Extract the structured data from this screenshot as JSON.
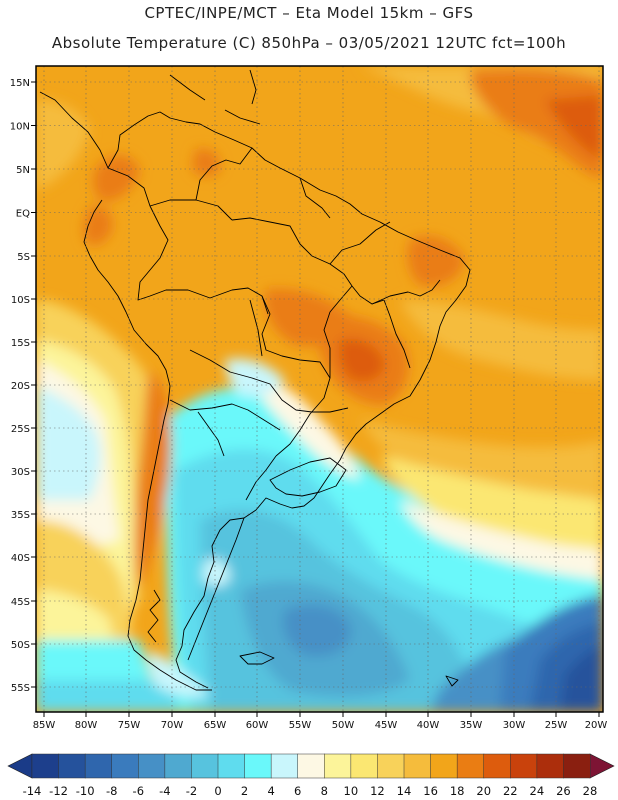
{
  "header": {
    "line1": "CPTEC/INPE/MCT –   Eta Model 15km – GFS",
    "line2": "Absolute Temperature (C) 850hPa – 03/05/2021 12UTC fct=100h"
  },
  "map": {
    "lat_labels": [
      "15N",
      "10N",
      "5N",
      "EQ",
      "5S",
      "10S",
      "15S",
      "20S",
      "25S",
      "30S",
      "35S",
      "40S",
      "45S",
      "50S",
      "55S"
    ],
    "lon_labels": [
      "85W",
      "80W",
      "75W",
      "70W",
      "65W",
      "60W",
      "55W",
      "50W",
      "45W",
      "40W",
      "35W",
      "30W",
      "25W",
      "20W"
    ]
  },
  "colorbar": {
    "labels": [
      "-14",
      "-12",
      "-10",
      "-8",
      "-6",
      "-4",
      "-2",
      "0",
      "2",
      "4",
      "6",
      "8",
      "10",
      "12",
      "14",
      "16",
      "18",
      "20",
      "22",
      "24",
      "26",
      "28"
    ],
    "colors": [
      "#1d3f8c",
      "#25529c",
      "#2f66ad",
      "#3a7bbd",
      "#4690c6",
      "#4fa9d0",
      "#57c3de",
      "#5fdcee",
      "#6af8fa",
      "#c9f6fc",
      "#fdf8e4",
      "#fcf49a",
      "#fbe772",
      "#f8d25a",
      "#f5bc3c",
      "#f2a51a",
      "#ea7d13",
      "#dd5c0d",
      "#c9420c",
      "#ac2e0c",
      "#8a1f10"
    ],
    "over_color": "#7d1434",
    "under_color": "#1a3b88"
  }
}
